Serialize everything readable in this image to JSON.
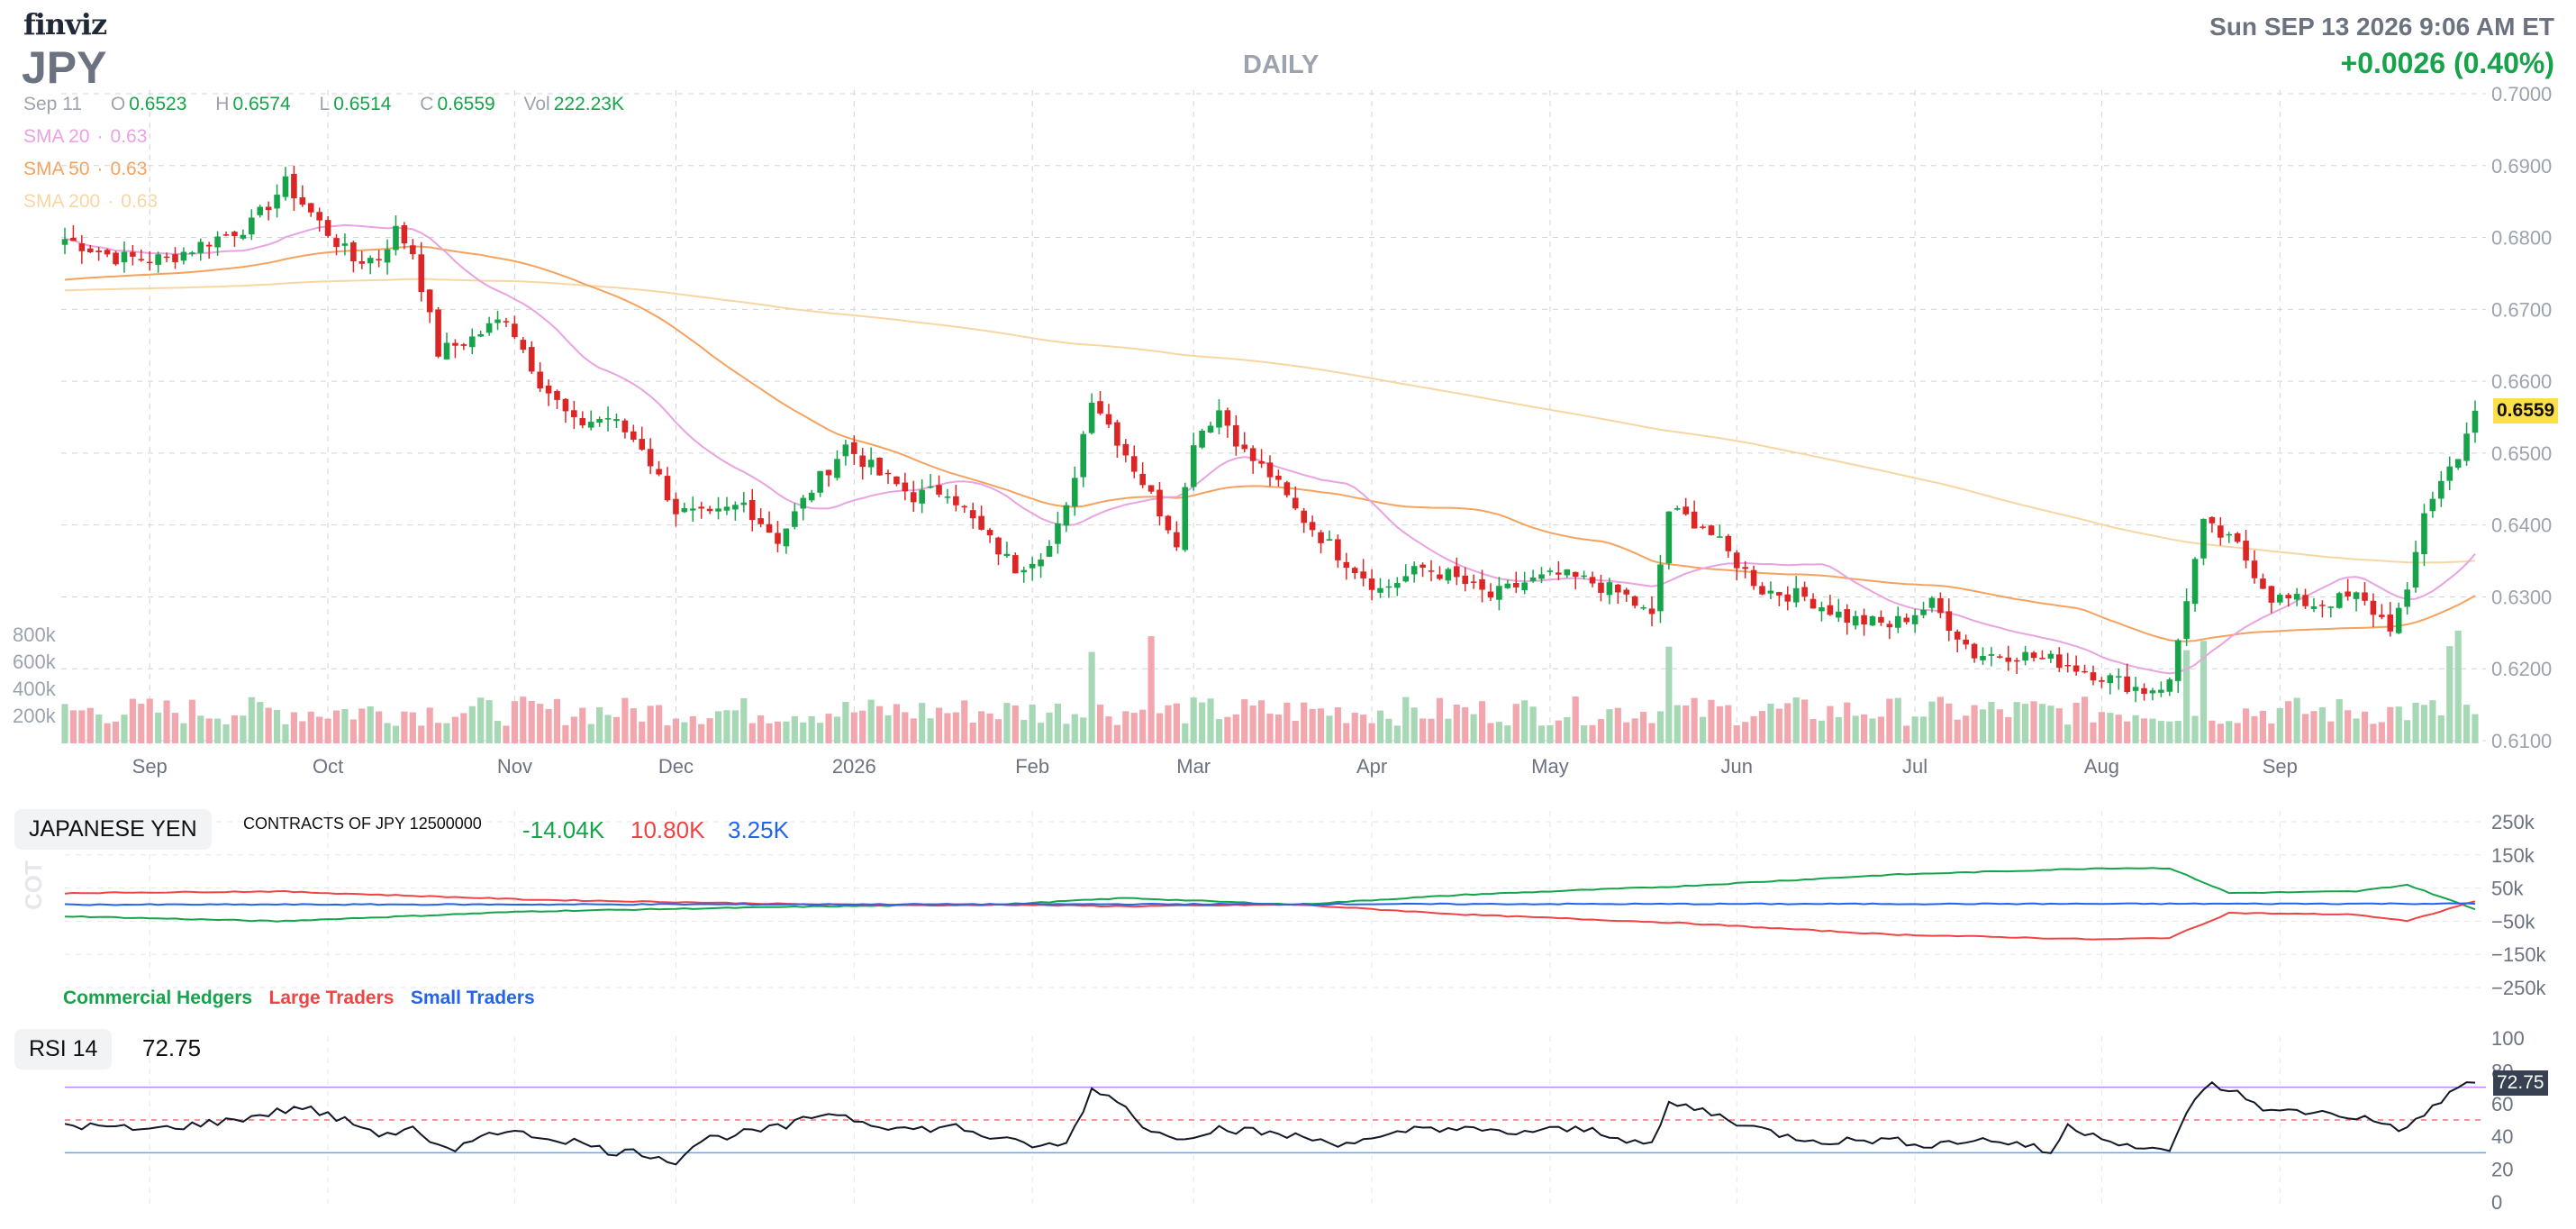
{
  "header": {
    "logo": "finviz",
    "ticker": "JPY",
    "period": "DAILY",
    "datetime": "Sun SEP 13 2026 9:06 AM ET",
    "change": "+0.0026 (0.40%)"
  },
  "ohlc": {
    "date": "Sep 11",
    "o_label": "O",
    "o": "0.6523",
    "h_label": "H",
    "h": "0.6574",
    "l_label": "L",
    "l": "0.6514",
    "c_label": "C",
    "c": "0.6559",
    "vol_label": "Vol",
    "vol": "222.23K"
  },
  "sma": [
    {
      "label": "SMA 20",
      "value": "0.63",
      "color": "#e9a3e0"
    },
    {
      "label": "SMA 50",
      "value": "0.63",
      "color": "#f6a25f"
    },
    {
      "label": "SMA 200",
      "value": "0.63",
      "color": "#f8d6a4"
    }
  ],
  "cot": {
    "title": "JAPANESE YEN",
    "subtitle": "CONTRACTS OF JPY 12500000",
    "commercial": "-14.04K",
    "large": "10.80K",
    "small": "3.25K",
    "side_label": "COT",
    "legend": [
      "Commercial Hedgers",
      "Large Traders",
      "Small Traders"
    ],
    "y_ticks": [
      "250k",
      "150k",
      "50k",
      "−50k",
      "−150k",
      "−250k"
    ]
  },
  "rsi": {
    "title": "RSI 14",
    "value": "72.75",
    "y_ticks": [
      "100",
      "80",
      "60",
      "40",
      "20",
      "0"
    ]
  },
  "colors": {
    "up": "#16a34a",
    "down": "#dc2626",
    "commercial": "#16a34a",
    "large": "#ef4444",
    "small": "#2563eb",
    "price_highlight": "#fde047"
  },
  "chart_data": [
    {
      "type": "candlestick",
      "title": "JPY",
      "price_axis_ticks": [
        "0.7000",
        "0.6900",
        "0.6800",
        "0.6700",
        "0.6600",
        "0.6500",
        "0.6400",
        "0.6300",
        "0.6200",
        "0.6100"
      ],
      "ylim": [
        0.61,
        0.7
      ],
      "volume_axis_ticks": [
        "800k",
        "600k",
        "400k",
        "200k"
      ],
      "x_ticks": [
        "Sep",
        "Oct",
        "Nov",
        "Dec",
        "2026",
        "Feb",
        "Mar",
        "Apr",
        "May",
        "Jun",
        "Jul",
        "Aug",
        "Sep"
      ],
      "last_price_label": "0.6559",
      "close_anchors": [
        [
          0,
          0.6798
        ],
        [
          6,
          0.6772
        ],
        [
          12,
          0.677
        ],
        [
          18,
          0.68
        ],
        [
          22,
          0.6818
        ],
        [
          26,
          0.6875
        ],
        [
          30,
          0.682
        ],
        [
          34,
          0.6768
        ],
        [
          37,
          0.6772
        ],
        [
          39,
          0.681
        ],
        [
          41,
          0.678
        ],
        [
          44,
          0.664
        ],
        [
          48,
          0.666
        ],
        [
          52,
          0.669
        ],
        [
          56,
          0.66
        ],
        [
          60,
          0.654
        ],
        [
          64,
          0.655
        ],
        [
          68,
          0.651
        ],
        [
          72,
          0.642
        ],
        [
          76,
          0.641
        ],
        [
          80,
          0.643
        ],
        [
          84,
          0.638
        ],
        [
          88,
          0.645
        ],
        [
          92,
          0.651
        ],
        [
          96,
          0.647
        ],
        [
          100,
          0.644
        ],
        [
          104,
          0.645
        ],
        [
          108,
          0.639
        ],
        [
          112,
          0.634
        ],
        [
          116,
          0.637
        ],
        [
          118,
          0.642
        ],
        [
          121,
          0.658
        ],
        [
          124,
          0.652
        ],
        [
          128,
          0.644
        ],
        [
          131,
          0.638
        ],
        [
          133,
          0.652
        ],
        [
          136,
          0.656
        ],
        [
          139,
          0.65
        ],
        [
          142,
          0.647
        ],
        [
          145,
          0.642
        ],
        [
          150,
          0.636
        ],
        [
          155,
          0.631
        ],
        [
          160,
          0.634
        ],
        [
          163,
          0.633
        ],
        [
          168,
          0.63
        ],
        [
          172,
          0.632
        ],
        [
          176,
          0.633
        ],
        [
          180,
          0.632
        ],
        [
          184,
          0.63
        ],
        [
          187,
          0.627
        ],
        [
          189,
          0.642
        ],
        [
          193,
          0.64
        ],
        [
          196,
          0.636
        ],
        [
          200,
          0.631
        ],
        [
          205,
          0.63
        ],
        [
          210,
          0.627
        ],
        [
          215,
          0.626
        ],
        [
          220,
          0.629
        ],
        [
          225,
          0.622
        ],
        [
          230,
          0.622
        ],
        [
          235,
          0.621
        ],
        [
          240,
          0.619
        ],
        [
          245,
          0.617
        ],
        [
          248,
          0.618
        ],
        [
          250,
          0.63
        ],
        [
          252,
          0.64
        ],
        [
          256,
          0.637
        ],
        [
          260,
          0.63
        ],
        [
          265,
          0.629
        ],
        [
          270,
          0.63
        ],
        [
          274,
          0.626
        ],
        [
          276,
          0.63
        ],
        [
          278,
          0.642
        ],
        [
          280,
          0.646
        ],
        [
          282,
          0.65
        ],
        [
          284,
          0.6559
        ]
      ],
      "cot_series_anchors": {
        "commercial": [
          [
            0,
            -35
          ],
          [
            25,
            -50
          ],
          [
            55,
            -20
          ],
          [
            90,
            -5
          ],
          [
            110,
            0
          ],
          [
            125,
            20
          ],
          [
            145,
            0
          ],
          [
            165,
            30
          ],
          [
            190,
            55
          ],
          [
            215,
            90
          ],
          [
            240,
            110
          ],
          [
            248,
            110
          ],
          [
            255,
            35
          ],
          [
            270,
            40
          ],
          [
            276,
            60
          ],
          [
            284,
            -14
          ]
        ],
        "large": [
          [
            0,
            35
          ],
          [
            25,
            40
          ],
          [
            55,
            15
          ],
          [
            90,
            0
          ],
          [
            110,
            0
          ],
          [
            125,
            -5
          ],
          [
            145,
            0
          ],
          [
            165,
            -30
          ],
          [
            190,
            -55
          ],
          [
            215,
            -90
          ],
          [
            240,
            -105
          ],
          [
            248,
            -100
          ],
          [
            255,
            -25
          ],
          [
            270,
            -30
          ],
          [
            276,
            -50
          ],
          [
            284,
            11
          ]
        ],
        "small": [
          [
            0,
            0
          ],
          [
            284,
            3
          ]
        ]
      },
      "rsi_anchors": [
        [
          0,
          47
        ],
        [
          10,
          44
        ],
        [
          20,
          50
        ],
        [
          28,
          58
        ],
        [
          35,
          46
        ],
        [
          38,
          40
        ],
        [
          41,
          47
        ],
        [
          43,
          35
        ],
        [
          46,
          30
        ],
        [
          50,
          44
        ],
        [
          56,
          40
        ],
        [
          60,
          37
        ],
        [
          64,
          31
        ],
        [
          68,
          30
        ],
        [
          72,
          25
        ],
        [
          75,
          38
        ],
        [
          80,
          42
        ],
        [
          85,
          46
        ],
        [
          90,
          55
        ],
        [
          95,
          48
        ],
        [
          100,
          44
        ],
        [
          105,
          46
        ],
        [
          110,
          38
        ],
        [
          115,
          34
        ],
        [
          118,
          35
        ],
        [
          121,
          68
        ],
        [
          124,
          63
        ],
        [
          128,
          42
        ],
        [
          132,
          40
        ],
        [
          136,
          45
        ],
        [
          140,
          43
        ],
        [
          145,
          40
        ],
        [
          150,
          36
        ],
        [
          155,
          38
        ],
        [
          160,
          46
        ],
        [
          165,
          44
        ],
        [
          170,
          42
        ],
        [
          175,
          44
        ],
        [
          180,
          44
        ],
        [
          187,
          34
        ],
        [
          189,
          60
        ],
        [
          193,
          56
        ],
        [
          198,
          47
        ],
        [
          203,
          40
        ],
        [
          208,
          37
        ],
        [
          214,
          38
        ],
        [
          220,
          35
        ],
        [
          225,
          38
        ],
        [
          230,
          36
        ],
        [
          234,
          30
        ],
        [
          236,
          46
        ],
        [
          240,
          40
        ],
        [
          245,
          32
        ],
        [
          248,
          30
        ],
        [
          250,
          56
        ],
        [
          253,
          72
        ],
        [
          256,
          66
        ],
        [
          260,
          55
        ],
        [
          265,
          55
        ],
        [
          270,
          52
        ],
        [
          276,
          44
        ],
        [
          279,
          58
        ],
        [
          282,
          70
        ],
        [
          284,
          72.75
        ]
      ],
      "rsi_levels": [
        70,
        50,
        30
      ]
    }
  ]
}
